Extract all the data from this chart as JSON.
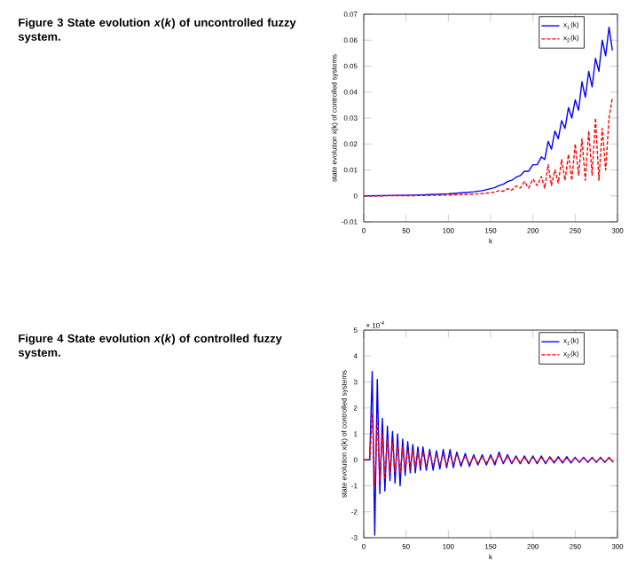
{
  "chart_data": [
    {
      "type": "line",
      "title": "**Figure 3  State evolution *x*(*k*) of uncontrolled fuzzy system.**",
      "xlabel": "k",
      "ylabel": "state evolution x(k) of controlled systems",
      "xlim": [
        0,
        300
      ],
      "xticks": [
        0,
        50,
        100,
        150,
        200,
        250,
        300
      ],
      "ylim": [
        -0.01,
        0.07
      ],
      "yticks": [
        -0.01,
        0,
        0.01,
        0.02,
        0.03,
        0.04,
        0.05,
        0.06,
        0.07
      ],
      "legend": "top right",
      "grid": false,
      "series": [
        {
          "name": "x$_{1}$(k)",
          "color": "#0000ff",
          "line_style": "solid",
          "x": [
            0,
            20,
            40,
            60,
            80,
            100,
            120,
            130,
            140,
            150,
            155,
            160,
            165,
            170,
            175,
            180,
            185,
            190,
            195,
            200,
            205,
            210,
            214,
            218,
            222,
            226,
            230,
            234,
            238,
            242,
            246,
            250,
            254,
            258,
            262,
            266,
            270,
            274,
            278,
            282,
            286,
            290,
            294
          ],
          "values": [
            0,
            0.0001,
            0.0002,
            0.0003,
            0.0005,
            0.0008,
            0.0013,
            0.0016,
            0.002,
            0.0028,
            0.0032,
            0.004,
            0.0045,
            0.0055,
            0.006,
            0.0072,
            0.0078,
            0.0095,
            0.0095,
            0.012,
            0.012,
            0.015,
            0.014,
            0.021,
            0.018,
            0.025,
            0.022,
            0.029,
            0.026,
            0.034,
            0.03,
            0.037,
            0.033,
            0.044,
            0.038,
            0.048,
            0.042,
            0.053,
            0.048,
            0.06,
            0.054,
            0.065,
            0.056
          ]
        },
        {
          "name": "x$_{2}$(k)",
          "color": "#ff0000",
          "line_style": "dashed",
          "x": [
            0,
            20,
            40,
            60,
            80,
            100,
            120,
            130,
            140,
            150,
            155,
            160,
            165,
            170,
            175,
            180,
            185,
            190,
            195,
            200,
            205,
            210,
            214,
            218,
            222,
            226,
            230,
            234,
            238,
            242,
            246,
            250,
            254,
            258,
            262,
            266,
            270,
            274,
            278,
            282,
            286,
            290,
            294
          ],
          "values": [
            0,
            0,
            0.0001,
            0.0001,
            0.0002,
            0.0003,
            0.0005,
            0.0007,
            0.0009,
            0.0012,
            0.0015,
            0.002,
            0.0018,
            0.0028,
            0.0022,
            0.0038,
            0.003,
            0.0055,
            0.003,
            0.0065,
            0.004,
            0.0075,
            0.003,
            0.012,
            0.004,
            0.01,
            0.005,
            0.014,
            0.006,
            0.016,
            0.006,
            0.02,
            0.008,
            0.022,
            0.006,
            0.025,
            0.008,
            0.03,
            0.006,
            0.026,
            0.01,
            0.03,
            0.038
          ]
        }
      ]
    },
    {
      "type": "line",
      "title": "**Figure 4  State evolution *x*(*k*) of controlled fuzzy system.**",
      "xlabel": "k",
      "ylabel": "state evolution x(k) of controlled systems",
      "annotations": [
        "× 10$^{-4}$"
      ],
      "xlim": [
        0,
        300
      ],
      "xticks": [
        0,
        50,
        100,
        150,
        200,
        250,
        300
      ],
      "ylim": [
        -3,
        5
      ],
      "yticks": [
        -3,
        -2,
        -1,
        0,
        1,
        2,
        3,
        4,
        5
      ],
      "legend": "top right",
      "grid": false,
      "series": [
        {
          "name": "x$_{1}$(k)",
          "color": "#0000ff",
          "line_style": "solid",
          "x": [
            0,
            7,
            10,
            13,
            16,
            19,
            22,
            25,
            28,
            31,
            34,
            37,
            40,
            43,
            46,
            49,
            52,
            55,
            58,
            61,
            64,
            67,
            70,
            74,
            78,
            82,
            86,
            90,
            94,
            98,
            102,
            106,
            110,
            115,
            120,
            125,
            130,
            135,
            140,
            145,
            150,
            155,
            160,
            165,
            170,
            175,
            180,
            185,
            190,
            195,
            200,
            205,
            210,
            215,
            220,
            225,
            230,
            235,
            240,
            245,
            250,
            255,
            260,
            265,
            270,
            275,
            280,
            285,
            290,
            295
          ],
          "values": [
            0,
            0,
            3.4,
            -2.9,
            3.1,
            -1.3,
            1.6,
            -1.2,
            1.3,
            -0.8,
            1.1,
            -0.9,
            1.0,
            -1.0,
            0.8,
            -0.6,
            0.7,
            -0.5,
            0.6,
            -0.5,
            0.5,
            -0.4,
            0.5,
            -0.4,
            0.4,
            -0.4,
            0.35,
            -0.35,
            0.4,
            -0.3,
            0.4,
            -0.3,
            0.3,
            -0.25,
            0.25,
            -0.25,
            0.2,
            -0.2,
            0.2,
            -0.2,
            0.2,
            -0.2,
            0.3,
            -0.15,
            0.2,
            -0.15,
            0.15,
            -0.15,
            0.15,
            -0.15,
            0.15,
            -0.15,
            0.15,
            -0.15,
            0.12,
            -0.12,
            0.12,
            -0.12,
            0.12,
            -0.12,
            0.1,
            -0.1,
            0.1,
            -0.1,
            0.1,
            -0.1,
            0.1,
            -0.1,
            0.1,
            -0.1
          ]
        },
        {
          "name": "x$_{2}$(k)",
          "color": "#ff0000",
          "line_style": "dashed",
          "x": [
            0,
            7,
            10,
            13,
            16,
            19,
            22,
            25,
            28,
            31,
            34,
            37,
            40,
            43,
            46,
            49,
            52,
            55,
            58,
            61,
            64,
            67,
            70,
            74,
            78,
            82,
            86,
            90,
            94,
            98,
            102,
            106,
            110,
            115,
            120,
            125,
            130,
            135,
            140,
            145,
            150,
            155,
            160,
            165,
            170,
            175,
            180,
            185,
            190,
            195,
            200,
            205,
            210,
            215,
            220,
            225,
            230,
            235,
            240,
            245,
            250,
            255,
            260,
            265,
            270,
            275,
            280,
            285,
            290,
            295
          ],
          "values": [
            0,
            0,
            1.8,
            -1.0,
            1.5,
            -0.8,
            1.0,
            -0.7,
            0.8,
            -0.5,
            0.7,
            -0.5,
            0.6,
            -0.5,
            0.5,
            -0.4,
            0.4,
            -0.3,
            0.4,
            -0.3,
            0.3,
            -0.25,
            0.3,
            -0.25,
            0.25,
            -0.2,
            0.2,
            -0.2,
            0.2,
            -0.2,
            0.2,
            -0.15,
            0.2,
            -0.15,
            0.15,
            -0.15,
            0.12,
            -0.12,
            0.12,
            -0.12,
            0.12,
            -0.1,
            0.2,
            -0.1,
            0.12,
            -0.1,
            0.1,
            -0.1,
            0.1,
            -0.1,
            0.1,
            -0.1,
            0.1,
            -0.1,
            0.08,
            -0.08,
            0.08,
            -0.08,
            0.08,
            -0.08,
            0.07,
            -0.07,
            0.07,
            -0.07,
            0.07,
            -0.07,
            0.07,
            -0.07,
            0.07,
            -0.07
          ]
        }
      ]
    }
  ]
}
